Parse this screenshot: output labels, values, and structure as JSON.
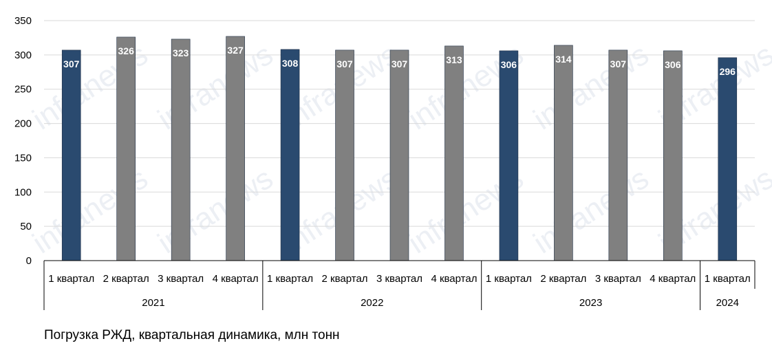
{
  "watermark": "infranews",
  "caption": "Погрузка РЖД, квартальная динамика, млн тонн",
  "colors": {
    "highlight": "#2a4a6f",
    "regular": "#808080",
    "grid": "#d9d9d9"
  },
  "chart_data": {
    "type": "bar",
    "title": "Погрузка РЖД, квартальная динамика, млн тонн",
    "xlabel": "",
    "ylabel": "",
    "ylim": [
      0,
      350
    ],
    "yticks": [
      0,
      50,
      100,
      150,
      200,
      250,
      300,
      350
    ],
    "grid": true,
    "legend": "none",
    "categories": [
      "1 квартал",
      "2 квартал",
      "3 квартал",
      "4 квартал",
      "1 квартал",
      "2 квартал",
      "3 квартал",
      "4 квартал",
      "1 квартал",
      "2 квартал",
      "3 квартал",
      "4 квартал",
      "1 квартал"
    ],
    "values": [
      307,
      326,
      323,
      327,
      308,
      307,
      307,
      313,
      306,
      314,
      307,
      306,
      296
    ],
    "highlighted": [
      true,
      false,
      false,
      false,
      true,
      false,
      false,
      false,
      true,
      false,
      false,
      false,
      true
    ],
    "groups": [
      {
        "label": "2021",
        "count": 4
      },
      {
        "label": "2022",
        "count": 4
      },
      {
        "label": "2023",
        "count": 4
      },
      {
        "label": "2024",
        "count": 1
      }
    ]
  }
}
